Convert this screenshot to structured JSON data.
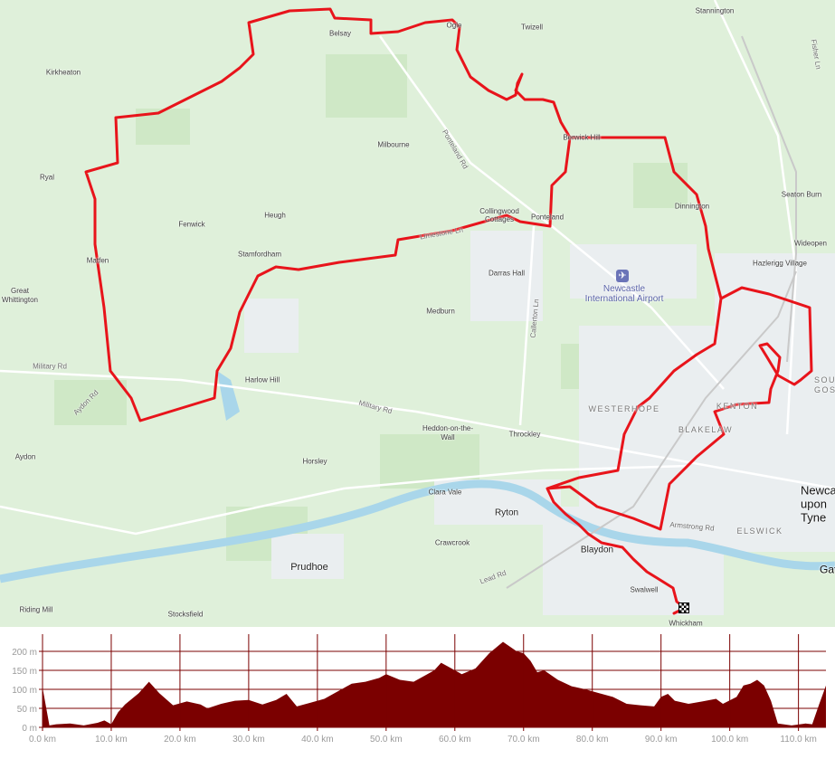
{
  "map": {
    "labels": [
      {
        "text": "Stannington"
      },
      {
        "text": "Belsay"
      },
      {
        "text": "Ogle"
      },
      {
        "text": "Twizell"
      },
      {
        "text": "Kirkheaton"
      },
      {
        "text": "Fisher Ln"
      },
      {
        "text": "Milbourne"
      },
      {
        "text": "Ponteland Rd"
      },
      {
        "text": "Berwick Hill"
      },
      {
        "text": "Ryal"
      },
      {
        "text": "Seaton Burn"
      },
      {
        "text": "Collingwood Cottages"
      },
      {
        "text": "Ponteland"
      },
      {
        "text": "Dinnington"
      },
      {
        "text": "Fenwick"
      },
      {
        "text": "Heugh"
      },
      {
        "text": "Wideopen"
      },
      {
        "text": "Stamfordham"
      },
      {
        "text": "Matfen"
      },
      {
        "text": "Darras Hall"
      },
      {
        "text": "Hazlerigg Village"
      },
      {
        "text": "Great Whittington"
      },
      {
        "text": "Medburn"
      },
      {
        "text": "Callerton Ln"
      },
      {
        "text": "Military Rd"
      },
      {
        "text": "Harlow Hill"
      },
      {
        "text": "Aydon Rd"
      },
      {
        "text": "Military Rd"
      },
      {
        "text": "WESTERHOPE"
      },
      {
        "text": "KENTON"
      },
      {
        "text": "SOUTH GOSFORTH"
      },
      {
        "text": "BLAKELAW"
      },
      {
        "text": "Heddon-on-the-Wall"
      },
      {
        "text": "Throckley"
      },
      {
        "text": "Aydon"
      },
      {
        "text": "Horsley"
      },
      {
        "text": "Clara Vale"
      },
      {
        "text": "Newcastle upon Tyne"
      },
      {
        "text": "Ryton"
      },
      {
        "text": "Armstrong Rd"
      },
      {
        "text": "ELSWICK"
      },
      {
        "text": "Crawcrook"
      },
      {
        "text": "Blaydon"
      },
      {
        "text": "Prudhoe"
      },
      {
        "text": "Lead Rd"
      },
      {
        "text": "Gateshead"
      },
      {
        "text": "Swalwell"
      },
      {
        "text": "Riding Mill"
      },
      {
        "text": "Stocksfield"
      },
      {
        "text": "Whickham"
      },
      {
        "text": "Limestone Ln"
      }
    ],
    "airport": {
      "name": "Newcastle International Airport",
      "icon": "airplane-icon"
    },
    "route_color": "#e8141b",
    "finish_icon": "checkered-flag-icon"
  },
  "chart_data": {
    "type": "area",
    "title": "",
    "xlabel": "",
    "ylabel": "",
    "x_unit": "km",
    "y_unit": "m",
    "xlim": [
      0,
      114
    ],
    "ylim": [
      0,
      238
    ],
    "grid": true,
    "x_ticks": [
      "0.0 km",
      "10.0 km",
      "20.0 km",
      "30.0 km",
      "40.0 km",
      "50.0 km",
      "60.0 km",
      "70.0 km",
      "80.0 km",
      "90.0 km",
      "100.0 km",
      "110.0 km"
    ],
    "y_ticks": [
      "0 m",
      "50 m",
      "100 m",
      "150 m",
      "200 m"
    ],
    "fill_color": "#7b0000",
    "x": [
      0,
      1,
      2,
      4,
      6,
      8,
      9,
      10,
      11,
      12,
      14,
      15.5,
      17,
      19,
      21,
      23,
      24,
      26,
      28,
      30,
      32,
      34,
      35.5,
      37,
      39,
      41,
      43,
      45,
      47,
      49,
      50,
      52,
      54,
      56,
      57,
      58,
      59,
      60,
      61,
      63,
      65,
      67,
      69,
      70,
      71,
      72,
      73,
      75,
      77,
      79,
      81,
      83,
      85,
      87,
      89,
      90,
      91,
      92,
      94,
      96,
      98,
      99,
      101,
      102,
      103,
      104,
      105,
      106,
      107,
      109,
      111,
      112,
      113,
      114
    ],
    "y": [
      105,
      5,
      8,
      10,
      5,
      12,
      18,
      8,
      40,
      60,
      90,
      120,
      90,
      58,
      68,
      60,
      50,
      62,
      70,
      72,
      60,
      72,
      88,
      55,
      65,
      75,
      95,
      115,
      120,
      130,
      140,
      125,
      120,
      140,
      150,
      170,
      160,
      150,
      140,
      155,
      195,
      225,
      200,
      195,
      175,
      145,
      150,
      125,
      108,
      100,
      90,
      80,
      62,
      58,
      55,
      80,
      88,
      70,
      62,
      68,
      75,
      62,
      80,
      110,
      115,
      125,
      110,
      70,
      10,
      5,
      10,
      8,
      60,
      110
    ]
  }
}
